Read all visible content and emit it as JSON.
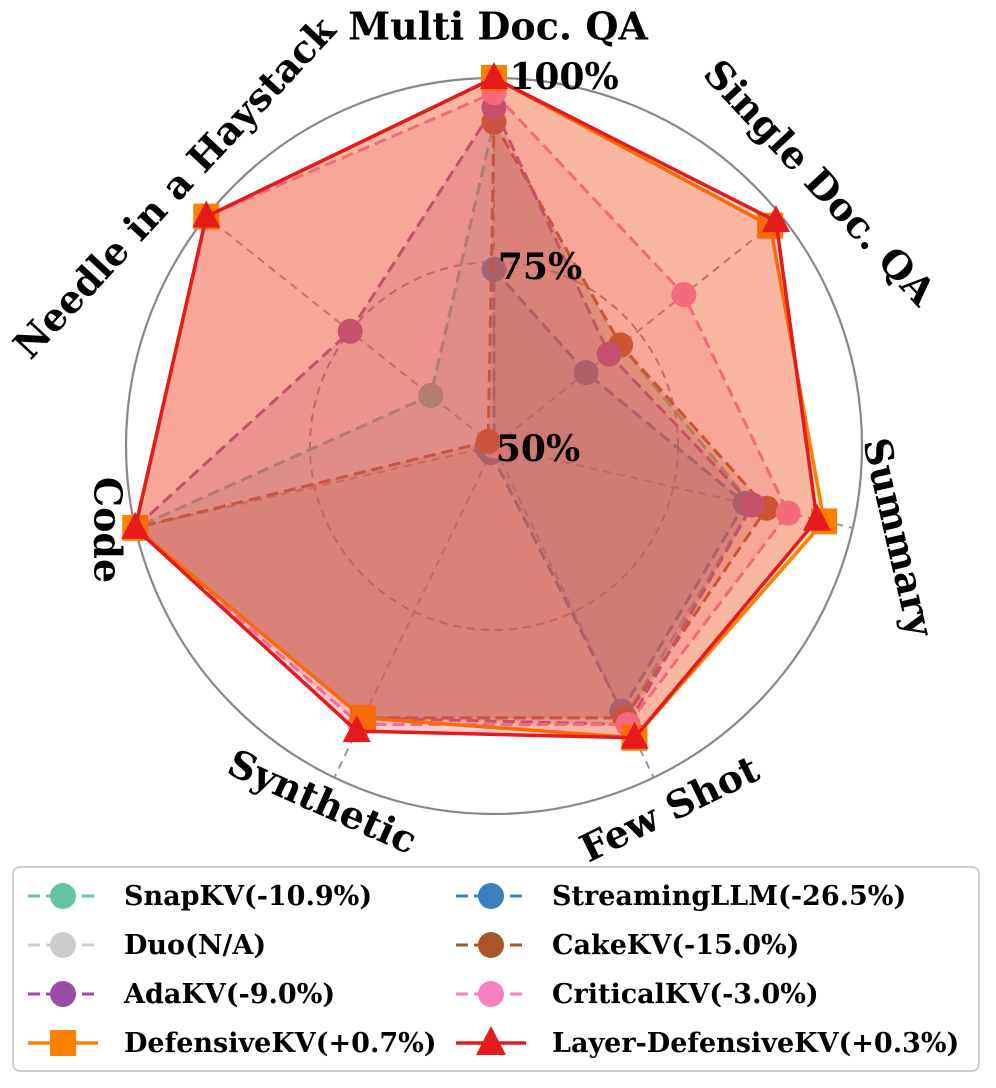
{
  "chart_data": {
    "type": "radar",
    "axes": [
      "Multi Doc. QA",
      "Single Doc. QA",
      "Summary",
      "Few Shot",
      "Synthetic",
      "Code",
      "Needle in a Haystack"
    ],
    "radial_ticks": [
      "50%",
      "75%",
      "100%"
    ],
    "rlim": [
      50,
      100
    ],
    "series": [
      {
        "name": "SnapKV(-10.9%)",
        "color": "#66c2a5",
        "line": "dashed",
        "marker": "circle",
        "values": [
          94,
          72,
          86,
          91,
          91,
          100,
          61
        ]
      },
      {
        "name": "StreamingLLM(-26.5%)",
        "color": "#3b7fbf",
        "line": "dashed",
        "marker": "circle",
        "values": [
          74,
          66,
          85,
          90,
          51,
          51,
          50
        ]
      },
      {
        "name": "Duo(N/A)",
        "color": "#cccccc",
        "line": "dashed",
        "marker": "circle",
        "values": [
          50,
          50,
          50,
          50,
          50,
          50,
          50
        ]
      },
      {
        "name": "CakeKV(-15.0%)",
        "color": "#a65628",
        "line": "dashed",
        "marker": "circle",
        "values": [
          94,
          72,
          88,
          91,
          91,
          100,
          51
        ]
      },
      {
        "name": "AdaKV(-9.0%)",
        "color": "#984ea3",
        "line": "dashed",
        "marker": "circle",
        "values": [
          96,
          70,
          86,
          92,
          91,
          100,
          75
        ]
      },
      {
        "name": "CriticalKV(-3.0%)",
        "color": "#f781bf",
        "line": "dashed",
        "marker": "circle",
        "values": [
          98,
          83,
          91,
          92,
          92,
          100,
          100
        ]
      },
      {
        "name": "DefensiveKV(+0.7%)",
        "color": "#ff7f00",
        "line": "solid",
        "marker": "square",
        "values": [
          100,
          98,
          96,
          94,
          91,
          100,
          100
        ]
      },
      {
        "name": "Layer-DefensiveKV(+0.3%)",
        "color": "#e41a1c",
        "line": "solid",
        "marker": "triangle",
        "values": [
          100,
          99,
          95,
          94,
          93,
          100,
          100
        ]
      }
    ]
  },
  "legend": {
    "items": [
      {
        "label": "SnapKV(-10.9%)",
        "color": "#66c2a5",
        "marker": "circle",
        "line": "dashed"
      },
      {
        "label": "StreamingLLM(-26.5%)",
        "color": "#3b7fbf",
        "marker": "circle",
        "line": "dashed"
      },
      {
        "label": "Duo(N/A)",
        "color": "#cccccc",
        "marker": "circle",
        "line": "dashed"
      },
      {
        "label": "CakeKV(-15.0%)",
        "color": "#a65628",
        "marker": "circle",
        "line": "dashed"
      },
      {
        "label": "AdaKV(-9.0%)",
        "color": "#984ea3",
        "marker": "circle",
        "line": "dashed"
      },
      {
        "label": "CriticalKV(-3.0%)",
        "color": "#f781bf",
        "marker": "circle",
        "line": "dashed"
      },
      {
        "label": "DefensiveKV(+0.7%)",
        "color": "#ff7f00",
        "marker": "square",
        "line": "solid"
      },
      {
        "label": "Layer-DefensiveKV(+0.3%)",
        "color": "#e41a1c",
        "marker": "triangle",
        "line": "solid"
      }
    ]
  }
}
